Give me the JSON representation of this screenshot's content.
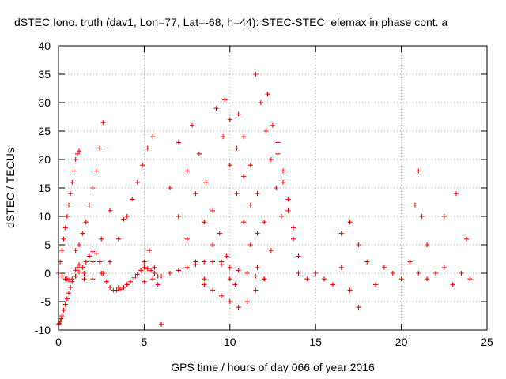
{
  "chart_data": {
    "type": "scatter",
    "title": "dSTEC Iono. truth (dav1, Lon=77, Lat=-68, h=44): STEC-STEC_elemax in phase cont. a",
    "xlabel": "GPS time / hours of day 066 of year 2016",
    "ylabel": "dSTEC  / TECUs",
    "xlim": [
      0,
      25
    ],
    "ylim": [
      -10,
      40
    ],
    "xticks": [
      0,
      5,
      10,
      15,
      20,
      25
    ],
    "yticks": [
      -10,
      -5,
      0,
      5,
      10,
      15,
      20,
      25,
      30,
      35,
      40
    ],
    "grid": true,
    "legend": "none",
    "marker": "+",
    "color": "#ff0000",
    "series": [
      {
        "x": [
          0.0,
          0.2,
          0.4,
          0.6,
          0.8,
          1.0,
          1.2,
          1.4,
          1.6,
          1.8,
          2.0,
          2.2,
          2.4,
          2.6,
          2.8,
          3.0,
          3.2,
          3.4,
          3.6,
          3.8,
          4.0,
          4.2,
          4.4,
          4.6,
          4.8,
          5.0,
          5.2,
          5.4,
          5.6,
          5.8
        ],
        "y": [
          0.0,
          -0.5,
          -1.0,
          -1.2,
          -1.0,
          -0.5,
          0.2,
          1.0,
          2.0,
          3.0,
          3.8,
          3.5,
          2.0,
          0.0,
          -1.5,
          -2.5,
          -3.0,
          -3.0,
          -2.8,
          -2.5,
          -2.0,
          -1.5,
          -0.8,
          -0.2,
          0.5,
          1.0,
          0.8,
          0.5,
          0.0,
          -0.5
        ]
      },
      {
        "x": [
          0.0,
          0.05,
          0.1,
          0.15,
          0.2,
          0.3,
          0.4,
          0.5,
          0.6,
          0.7,
          0.8,
          0.9,
          1.0,
          1.1,
          1.2
        ],
        "y": [
          -9.0,
          -8.8,
          -8.5,
          -8.0,
          -7.5,
          -6.5,
          -5.5,
          -4.5,
          -3.5,
          -2.5,
          -1.5,
          -0.5,
          0.5,
          1.0,
          1.5
        ]
      },
      {
        "x": [
          0.0,
          0.1,
          0.2,
          0.3,
          0.4,
          0.5,
          0.6,
          0.7,
          0.8,
          0.9,
          1.0,
          1.1,
          1.2
        ],
        "y": [
          0.0,
          2.0,
          4.0,
          6.0,
          8.0,
          10.0,
          12.0,
          14.0,
          16.0,
          18.0,
          20.0,
          21.0,
          21.5
        ]
      },
      {
        "x": [
          1.0,
          1.2,
          1.4,
          1.6,
          1.8,
          2.0,
          2.2,
          2.4,
          2.6
        ],
        "y": [
          4.0,
          5.0,
          7.0,
          9.0,
          12.0,
          15.0,
          18.0,
          22.0,
          26.5
        ]
      },
      {
        "x": [
          0.5,
          1.0,
          1.5,
          2.0,
          2.5,
          3.0
        ],
        "y": [
          -1.0,
          -0.5,
          0.0,
          2.0,
          6.0,
          11.0
        ]
      },
      {
        "x": [
          1.5,
          2.0,
          2.5,
          3.0,
          3.5,
          3.8
        ],
        "y": [
          -1.0,
          -1.0,
          0.0,
          2.0,
          6.0,
          9.5
        ]
      },
      {
        "x": [
          3.0,
          3.5,
          4.0,
          4.5,
          5.0,
          5.3,
          5.6,
          5.8,
          6.0
        ],
        "y": [
          -2.5,
          -2.5,
          -2.0,
          -0.5,
          2.0,
          4.0,
          1.0,
          -2.0,
          -9.0
        ]
      },
      {
        "x": [
          4.0,
          4.3,
          4.6,
          4.9,
          5.2,
          5.5
        ],
        "y": [
          10.0,
          13.0,
          16.0,
          19.0,
          22.0,
          24.0
        ]
      },
      {
        "x": [
          5.0,
          5.5,
          6.0,
          6.5,
          7.0,
          7.5,
          8.0,
          8.5,
          9.0,
          9.5,
          10.0,
          10.5,
          11.0,
          11.5,
          12.0
        ],
        "y": [
          -1.5,
          -1.0,
          -0.5,
          0.0,
          0.5,
          1.0,
          1.5,
          2.0,
          2.0,
          1.5,
          1.0,
          0.5,
          0.0,
          -0.5,
          -1.0
        ]
      },
      {
        "x": [
          6.5,
          7.0,
          7.5,
          8.0,
          8.5
        ],
        "y": [
          15.0,
          10.0,
          6.0,
          2.0,
          -1.0
        ]
      },
      {
        "x": [
          7.0,
          7.5,
          8.0,
          8.5,
          9.0,
          9.5,
          10.0
        ],
        "y": [
          23.0,
          18.0,
          14.0,
          9.0,
          5.0,
          2.0,
          -1.0
        ]
      },
      {
        "x": [
          7.8,
          8.2,
          8.6,
          9.0,
          9.4,
          9.8,
          10.3
        ],
        "y": [
          26.0,
          21.0,
          16.0,
          11.0,
          7.0,
          3.0,
          -2.0
        ]
      },
      {
        "x": [
          9.2,
          9.6,
          10.0,
          10.4,
          10.8,
          11.2,
          11.6
        ],
        "y": [
          29.0,
          24.0,
          19.0,
          14.0,
          9.0,
          5.0,
          1.0
        ]
      },
      {
        "x": [
          9.7,
          10.0,
          10.4,
          10.8,
          11.2,
          11.6
        ],
        "y": [
          30.5,
          27.0,
          22.0,
          17.0,
          12.0,
          7.0
        ]
      },
      {
        "x": [
          10.5,
          10.8,
          11.2,
          11.6,
          12.0,
          12.4
        ],
        "y": [
          28.0,
          24.0,
          19.0,
          14.0,
          9.0,
          4.0
        ]
      },
      {
        "x": [
          11.5,
          11.8,
          12.1,
          12.4,
          12.7,
          13.0
        ],
        "y": [
          35.0,
          30.0,
          25.0,
          20.0,
          15.0,
          10.0
        ]
      },
      {
        "x": [
          12.2,
          12.5,
          12.8,
          13.1,
          13.4,
          13.7
        ],
        "y": [
          31.5,
          26.0,
          21.0,
          16.0,
          11.0,
          6.0
        ]
      },
      {
        "x": [
          12.8,
          13.1,
          13.4,
          13.7,
          14.0
        ],
        "y": [
          23.0,
          18.0,
          13.0,
          8.0,
          3.0
        ]
      },
      {
        "x": [
          8.5,
          9.0,
          9.5,
          10.0,
          10.5,
          11.0,
          11.5,
          12.0
        ],
        "y": [
          -2.0,
          -3.0,
          -4.0,
          -5.0,
          -6.0,
          -5.0,
          -3.0,
          -1.0
        ]
      },
      {
        "x": [
          14.0,
          14.5,
          15.0,
          15.5,
          16.0,
          16.5,
          17.0,
          17.5,
          18.0,
          18.5,
          19.0,
          19.5,
          20.0,
          20.5,
          21.0,
          21.5,
          22.0,
          22.5,
          23.0,
          23.5,
          24.0
        ],
        "y": [
          0.0,
          -1.0,
          0.0,
          -1.0,
          -2.0,
          1.0,
          -3.0,
          -6.0,
          2.0,
          -2.0,
          1.0,
          0.0,
          -1.0,
          2.0,
          0.0,
          -1.0,
          0.0,
          1.0,
          -2.0,
          0.0,
          -1.0
        ]
      },
      {
        "x": [
          16.5,
          17.0,
          17.5
        ],
        "y": [
          7.0,
          9.0,
          5.0
        ]
      },
      {
        "x": [
          20.8,
          21.0,
          21.2,
          21.5,
          22.5,
          23.2,
          23.8
        ],
        "y": [
          12.0,
          18.0,
          10.0,
          5.0,
          10.0,
          14.0,
          6.0
        ]
      }
    ]
  }
}
